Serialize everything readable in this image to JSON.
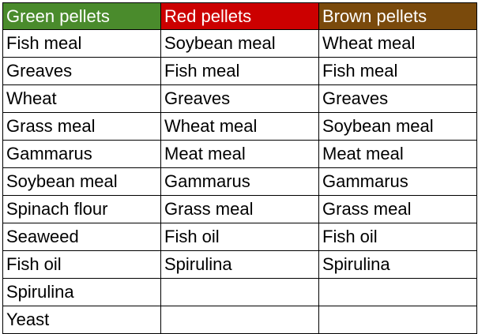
{
  "table": {
    "columns": [
      {
        "label": "Green pellets",
        "color": "#4a8b2c"
      },
      {
        "label": "Red pellets",
        "color": "#cc0000"
      },
      {
        "label": "Brown pellets",
        "color": "#7a4a0c"
      }
    ],
    "rows": [
      [
        "Fish meal",
        "Soybean meal",
        "Wheat meal"
      ],
      [
        "Greaves",
        "Fish meal",
        "Fish meal"
      ],
      [
        "Wheat",
        "Greaves",
        "Greaves"
      ],
      [
        "Grass meal",
        "Wheat meal",
        "Soybean meal"
      ],
      [
        "Gammarus",
        "Meat meal",
        "Meat meal"
      ],
      [
        "Soybean meal",
        "Gammarus",
        "Gammarus"
      ],
      [
        "Spinach flour",
        "Grass meal",
        "Grass meal"
      ],
      [
        "Seaweed",
        "Fish oil",
        "Fish oil"
      ],
      [
        "Fish oil",
        "Spirulina",
        "Spirulina"
      ],
      [
        "Spirulina",
        "",
        ""
      ],
      [
        "Yeast",
        "",
        ""
      ]
    ]
  }
}
